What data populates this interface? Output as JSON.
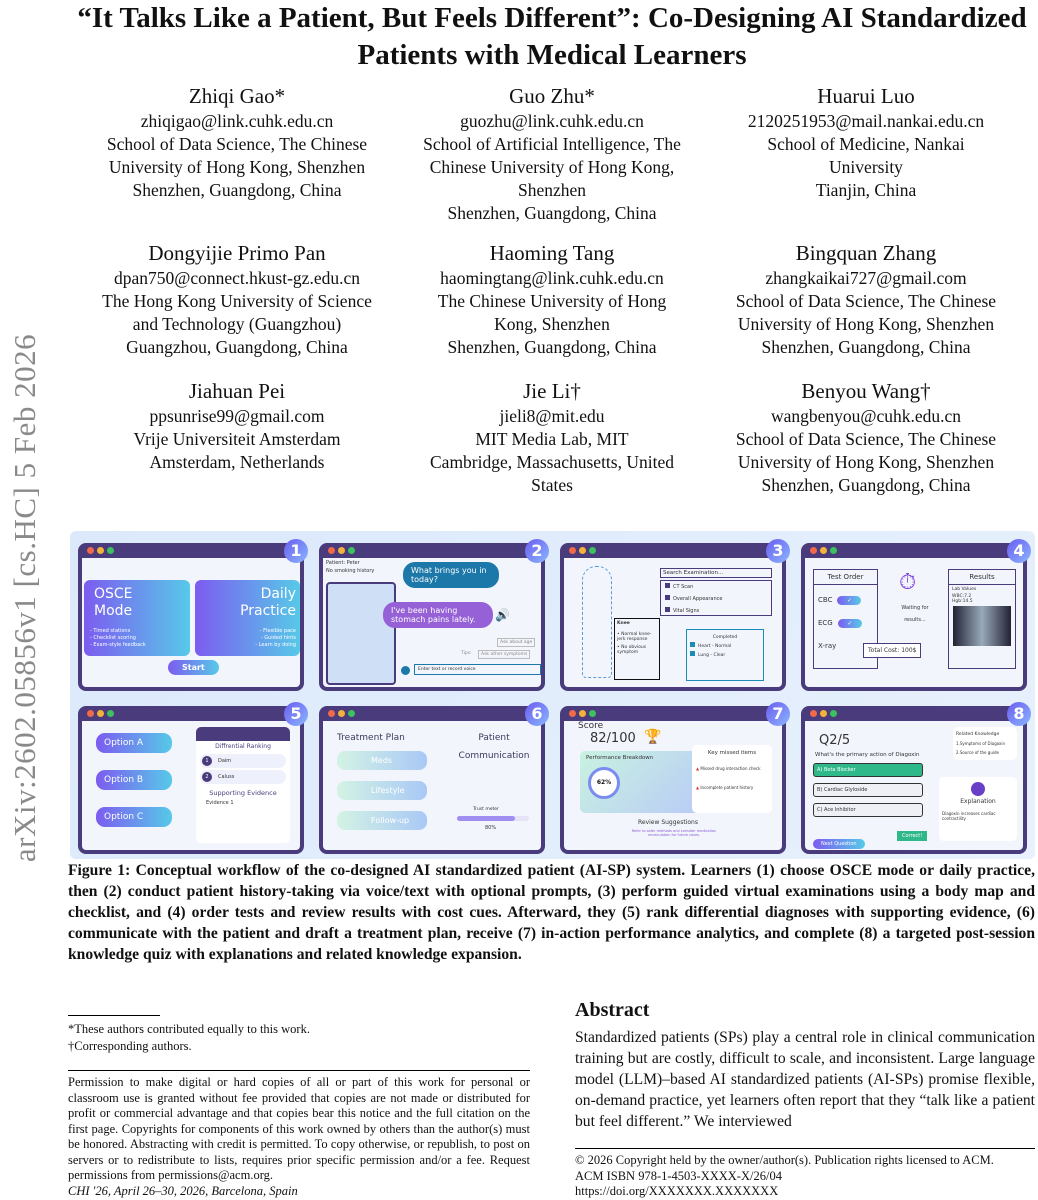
{
  "arxiv_id": "arXiv:2602.05856v1  [cs.HC]  5 Feb 2026",
  "title": "“It Talks Like a Patient, But Feels Different”: Co-Designing AI Standardized Patients with Medical Learners",
  "authors": [
    {
      "name": "Zhiqi Gao*",
      "lines": [
        "zhiqigao@link.cuhk.edu.cn",
        "School of Data Science, The Chinese",
        "University of Hong Kong, Shenzhen",
        "Shenzhen, Guangdong, China"
      ]
    },
    {
      "name": "Guo Zhu*",
      "lines": [
        "guozhu@link.cuhk.edu.cn",
        "School of Artificial Intelligence, The",
        "Chinese University of Hong Kong,",
        "Shenzhen",
        "Shenzhen, Guangdong, China"
      ]
    },
    {
      "name": "Huarui Luo",
      "lines": [
        "2120251953@mail.nankai.edu.cn",
        "School of Medicine, Nankai",
        "University",
        "Tianjin, China"
      ]
    },
    {
      "name": "Dongyijie Primo Pan",
      "lines": [
        "dpan750@connect.hkust-gz.edu.cn",
        "The Hong Kong University of Science",
        "and Technology (Guangzhou)",
        "Guangzhou, Guangdong, China"
      ]
    },
    {
      "name": "Haoming Tang",
      "lines": [
        "haomingtang@link.cuhk.edu.cn",
        "The Chinese University of Hong",
        "Kong, Shenzhen",
        "Shenzhen, Guangdong, China"
      ]
    },
    {
      "name": "Bingquan Zhang",
      "lines": [
        "zhangkaikai727@gmail.com",
        "School of Data Science, The Chinese",
        "University of Hong Kong, Shenzhen",
        "Shenzhen, Guangdong, China"
      ]
    },
    {
      "name": "Jiahuan Pei",
      "lines": [
        "ppsunrise99@gmail.com",
        "Vrije Universiteit Amsterdam",
        "Amsterdam, Netherlands"
      ]
    },
    {
      "name": "Jie Li†",
      "lines": [
        "jieli8@mit.edu",
        "MIT Media Lab, MIT",
        "Cambridge, Massachusetts, United",
        "States"
      ]
    },
    {
      "name": "Benyou Wang†",
      "lines": [
        "wangbenyou@cuhk.edu.cn",
        "School of Data Science, The Chinese",
        "University of Hong Kong, Shenzhen",
        "Shenzhen, Guangdong, China"
      ]
    }
  ],
  "figure": {
    "p1": {
      "num": "1",
      "osce": "OSCE Mode",
      "osce_items": [
        "- Timed stations",
        "- Checklist scoring",
        "- Exam-style feedback"
      ],
      "daily": "Daily Practice",
      "daily_items": [
        "- Flexible pace",
        "- Guided hints",
        "- Learn by doing"
      ],
      "start": "Start"
    },
    "p2": {
      "num": "2",
      "patient": "Patient:  Peter",
      "history": "No smoking history",
      "doctor": "What brings you in today?",
      "reply": "I've been having stomach pains lately.",
      "tip1": "Ask about age",
      "tips": "Tips:",
      "tip2": "Ask other symptoms",
      "input": "Enter text or record voice"
    },
    "p3": {
      "num": "3",
      "search": "Search Examination...",
      "items": [
        "CT Scan",
        "Overall Appearance",
        "Vital Signs"
      ],
      "knee": "Knee",
      "knee_notes": [
        "Normal knee-jerk response",
        "No obvious symptom"
      ],
      "completed": "Completed",
      "done": [
        "Heart - Normal",
        "Lung - Clear"
      ]
    },
    "p4": {
      "num": "4",
      "order": "Test Order",
      "tests": [
        "CBC",
        "ECG",
        "X-ray"
      ],
      "waiting": "Waiting for results...",
      "results": "Results",
      "lab": "Lab Values",
      "wbc": "WBC:7.2",
      "hgb": "Hgb:14.5",
      "cost": "Total Cost: 100$"
    },
    "p5": {
      "num": "5",
      "options": [
        "Option A",
        "Option B",
        "Option C"
      ],
      "ranking": "Diffrential Ranking",
      "ranks": [
        "Daim",
        "Caluss"
      ],
      "evidence": "Supporting Evidence",
      "ev1": "Evidence 1"
    },
    "p6": {
      "num": "6",
      "plan": "Treatment Plan",
      "items": [
        "Meds",
        "Lifestyle",
        "Follow-up"
      ],
      "comm": "Patient Communication",
      "trust": "Trust meter",
      "trust_value": "80%",
      "trust_fraction": 0.8
    },
    "p7": {
      "num": "7",
      "score_label": "Score",
      "score": "82/100",
      "breakdown": "Performance Breakdown",
      "pct": "62%",
      "pct_value": 0.62,
      "missed": "Key missed items",
      "missed_items": [
        "Missed drug interaction check",
        "Incomplete patient history"
      ],
      "review": "Review Suggestions",
      "review_text": "Refer to safer methods and consider medication recalculation for future cases."
    },
    "p8": {
      "num": "8",
      "q": "Q2/5",
      "question": "What's the primary action of Diagoxin",
      "answers": [
        "A) Beta Blocker",
        "B) Cardiac Glyloside",
        "C) Ace Inhibitor"
      ],
      "next": "Next Question",
      "correct": "Correct!",
      "related": "Related Knowledge",
      "related_items": [
        "1.Symptoms of Diagoxin",
        "2.Source of the guide"
      ],
      "explanation": "Explanation",
      "exp_text": "Diagoxin increases cardiac contractility"
    }
  },
  "caption": "Figure 1: Conceptual workflow of the co-designed AI standardized patient (AI-SP) system. Learners (1) choose OSCE mode or daily practice, then (2) conduct patient history-taking via voice/text with optional prompts, (3) perform guided virtual examinations using a body map and checklist, and (4) order tests and review results with cost cues. Afterward, they (5) rank differential diagnoses with supporting evidence, (6) communicate with the patient and draft a treatment plan, receive (7) in-action performance analytics, and complete (8) a targeted post-session knowledge quiz with explanations and related knowledge expansion.",
  "footnotes": [
    "*These authors contributed equally to this work.",
    "†Corresponding authors."
  ],
  "permission": "Permission to make digital or hard copies of all or part of this work for personal or classroom use is granted without fee provided that copies are not made or distributed for profit or commercial advantage and that copies bear this notice and the full citation on the first page. Copyrights for components of this work owned by others than the author(s) must be honored. Abstracting with credit is permitted. To copy otherwise, or republish, to post on servers or to redistribute to lists, requires prior specific permission and/or a fee. Request permissions from permissions@acm.org.",
  "venue": "CHI '26, April 26–30, 2026, Barcelona, Spain",
  "abstract": {
    "heading": "Abstract",
    "text": "Standardized patients (SPs) play a central role in clinical communication training but are costly, difficult to scale, and inconsistent. Large language model (LLM)–based AI standardized patients (AI-SPs) promise flexible, on-demand practice, yet learners often report that they “talk like a patient but feel different.” We interviewed"
  },
  "copyright": [
    "© 2026 Copyright held by the owner/author(s). Publication rights licensed to ACM.",
    "ACM ISBN 978-1-4503-XXXX-X/26/04",
    "https://doi.org/XXXXXXX.XXXXXXX"
  ]
}
